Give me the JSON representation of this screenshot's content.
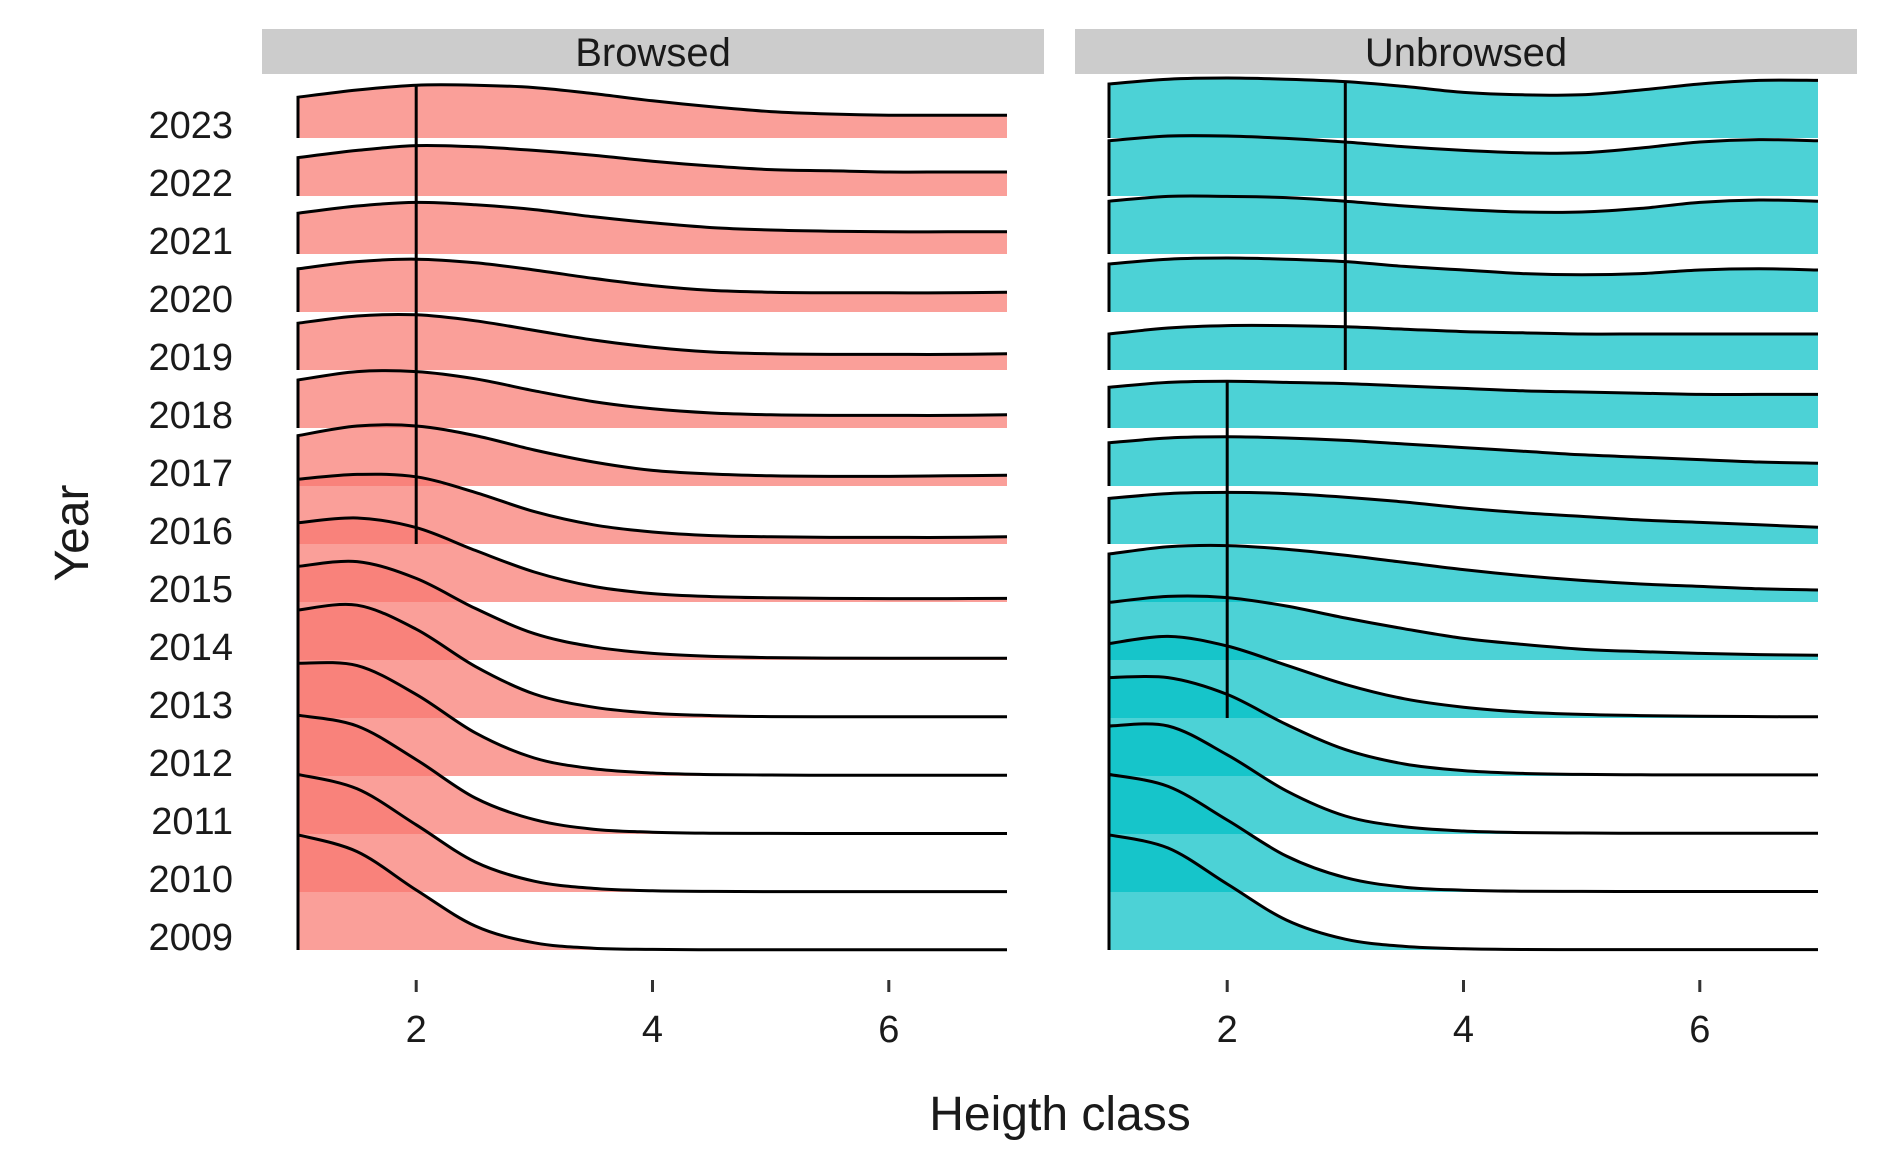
{
  "chart_data": {
    "type": "ridgeline",
    "xlabel": "Heigth class",
    "ylabel": "Year",
    "xlim": [
      1,
      7
    ],
    "x_ticks": [
      2,
      4,
      6
    ],
    "years": [
      "2009",
      "2010",
      "2011",
      "2012",
      "2013",
      "2014",
      "2015",
      "2016",
      "2017",
      "2018",
      "2019",
      "2020",
      "2021",
      "2022",
      "2023"
    ],
    "colors": {
      "Browsed": "#F8766D",
      "Unbrowsed": "#00BFC4"
    },
    "panels": [
      {
        "name": "Browsed",
        "median_segments": [
          {
            "x": 2,
            "from_year": "2016",
            "to_year": "2023"
          }
        ],
        "series": [
          {
            "year": "2009",
            "y": [
              0.96,
              0.82,
              0.5,
              0.2,
              0.06,
              0.015,
              0.005,
              0.002,
              0.002,
              0.002,
              0.002,
              0.002,
              0.002
            ]
          },
          {
            "year": "2010",
            "y": [
              0.98,
              0.86,
              0.56,
              0.25,
              0.09,
              0.03,
              0.01,
              0.005,
              0.003,
              0.003,
              0.003,
              0.003,
              0.003
            ]
          },
          {
            "year": "2011",
            "y": [
              0.99,
              0.9,
              0.62,
              0.3,
              0.12,
              0.04,
              0.015,
              0.007,
              0.005,
              0.004,
              0.004,
              0.004,
              0.004
            ]
          },
          {
            "year": "2012",
            "y": [
              0.94,
              0.92,
              0.68,
              0.36,
              0.15,
              0.06,
              0.025,
              0.012,
              0.008,
              0.006,
              0.006,
              0.006,
              0.006
            ]
          },
          {
            "year": "2013",
            "y": [
              0.9,
              0.94,
              0.74,
              0.43,
              0.2,
              0.09,
              0.04,
              0.02,
              0.012,
              0.01,
              0.01,
              0.01,
              0.01
            ]
          },
          {
            "year": "2014",
            "y": [
              0.78,
              0.82,
              0.68,
              0.43,
              0.22,
              0.11,
              0.055,
              0.03,
              0.02,
              0.016,
              0.015,
              0.015,
              0.015
            ]
          },
          {
            "year": "2015",
            "y": [
              0.66,
              0.7,
              0.62,
              0.43,
              0.25,
              0.13,
              0.07,
              0.045,
              0.035,
              0.03,
              0.028,
              0.028,
              0.03
            ]
          },
          {
            "year": "2016",
            "y": [
              0.54,
              0.58,
              0.56,
              0.43,
              0.27,
              0.16,
              0.1,
              0.07,
              0.06,
              0.055,
              0.055,
              0.055,
              0.06
            ]
          },
          {
            "year": "2017",
            "y": [
              0.42,
              0.5,
              0.5,
              0.42,
              0.3,
              0.2,
              0.13,
              0.1,
              0.085,
              0.08,
              0.08,
              0.085,
              0.09
            ]
          },
          {
            "year": "2018",
            "y": [
              0.4,
              0.47,
              0.47,
              0.41,
              0.31,
              0.22,
              0.16,
              0.125,
              0.11,
              0.105,
              0.105,
              0.105,
              0.11
            ]
          },
          {
            "year": "2019",
            "y": [
              0.39,
              0.45,
              0.46,
              0.41,
              0.33,
              0.25,
              0.19,
              0.15,
              0.135,
              0.13,
              0.13,
              0.13,
              0.135
            ]
          },
          {
            "year": "2020",
            "y": [
              0.36,
              0.42,
              0.44,
              0.41,
              0.35,
              0.28,
              0.22,
              0.18,
              0.165,
              0.16,
              0.16,
              0.16,
              0.165
            ]
          },
          {
            "year": "2021",
            "y": [
              0.34,
              0.4,
              0.43,
              0.41,
              0.37,
              0.31,
              0.26,
              0.22,
              0.2,
              0.19,
              0.185,
              0.185,
              0.185
            ]
          },
          {
            "year": "2022",
            "y": [
              0.32,
              0.38,
              0.42,
              0.41,
              0.38,
              0.34,
              0.29,
              0.25,
              0.22,
              0.21,
              0.2,
              0.2,
              0.2
            ]
          },
          {
            "year": "2023",
            "y": [
              0.34,
              0.4,
              0.44,
              0.44,
              0.42,
              0.37,
              0.31,
              0.26,
              0.22,
              0.2,
              0.19,
              0.19,
              0.19
            ]
          }
        ]
      },
      {
        "name": "Unbrowsed",
        "median_segments": [
          {
            "x": 2,
            "from_year": "2013",
            "to_year": "2018"
          },
          {
            "x": 3,
            "from_year": "2019",
            "to_year": "2023"
          }
        ],
        "series": [
          {
            "year": "2009",
            "y": [
              0.96,
              0.85,
              0.55,
              0.25,
              0.09,
              0.03,
              0.01,
              0.004,
              0.003,
              0.003,
              0.003,
              0.003,
              0.003
            ]
          },
          {
            "year": "2010",
            "y": [
              0.98,
              0.88,
              0.6,
              0.3,
              0.12,
              0.04,
              0.015,
              0.007,
              0.005,
              0.004,
              0.004,
              0.004,
              0.004
            ]
          },
          {
            "year": "2011",
            "y": [
              0.9,
              0.9,
              0.66,
              0.36,
              0.15,
              0.06,
              0.025,
              0.012,
              0.008,
              0.006,
              0.006,
              0.006,
              0.006
            ]
          },
          {
            "year": "2012",
            "y": [
              0.82,
              0.82,
              0.68,
              0.43,
              0.22,
              0.1,
              0.045,
              0.022,
              0.013,
              0.01,
              0.009,
              0.009,
              0.009
            ]
          },
          {
            "year": "2013",
            "y": [
              0.62,
              0.68,
              0.6,
              0.44,
              0.28,
              0.16,
              0.09,
              0.05,
              0.03,
              0.02,
              0.015,
              0.012,
              0.01
            ]
          },
          {
            "year": "2014",
            "y": [
              0.48,
              0.53,
              0.52,
              0.45,
              0.35,
              0.26,
              0.18,
              0.13,
              0.09,
              0.07,
              0.055,
              0.045,
              0.04
            ]
          },
          {
            "year": "2015",
            "y": [
              0.4,
              0.46,
              0.47,
              0.44,
              0.39,
              0.33,
              0.27,
              0.22,
              0.18,
              0.15,
              0.13,
              0.11,
              0.1
            ]
          },
          {
            "year": "2016",
            "y": [
              0.38,
              0.42,
              0.43,
              0.42,
              0.39,
              0.35,
              0.3,
              0.26,
              0.23,
              0.2,
              0.18,
              0.16,
              0.14
            ]
          },
          {
            "year": "2017",
            "y": [
              0.36,
              0.4,
              0.41,
              0.4,
              0.38,
              0.35,
              0.32,
              0.29,
              0.26,
              0.24,
              0.22,
              0.2,
              0.19
            ]
          },
          {
            "year": "2018",
            "y": [
              0.34,
              0.38,
              0.39,
              0.38,
              0.37,
              0.35,
              0.33,
              0.31,
              0.3,
              0.29,
              0.28,
              0.28,
              0.28
            ]
          },
          {
            "year": "2019",
            "y": [
              0.3,
              0.35,
              0.37,
              0.37,
              0.36,
              0.34,
              0.32,
              0.31,
              0.3,
              0.3,
              0.3,
              0.3,
              0.3
            ]
          },
          {
            "year": "2020",
            "y": [
              0.4,
              0.44,
              0.45,
              0.44,
              0.42,
              0.38,
              0.35,
              0.32,
              0.31,
              0.32,
              0.35,
              0.36,
              0.35
            ]
          },
          {
            "year": "2021",
            "y": [
              0.44,
              0.48,
              0.48,
              0.47,
              0.44,
              0.4,
              0.37,
              0.35,
              0.35,
              0.38,
              0.43,
              0.45,
              0.44
            ]
          },
          {
            "year": "2022",
            "y": [
              0.46,
              0.5,
              0.5,
              0.48,
              0.45,
              0.41,
              0.38,
              0.36,
              0.36,
              0.4,
              0.45,
              0.47,
              0.46
            ]
          },
          {
            "year": "2023",
            "y": [
              0.45,
              0.49,
              0.5,
              0.49,
              0.47,
              0.43,
              0.38,
              0.36,
              0.36,
              0.4,
              0.45,
              0.48,
              0.48
            ]
          }
        ]
      }
    ]
  }
}
